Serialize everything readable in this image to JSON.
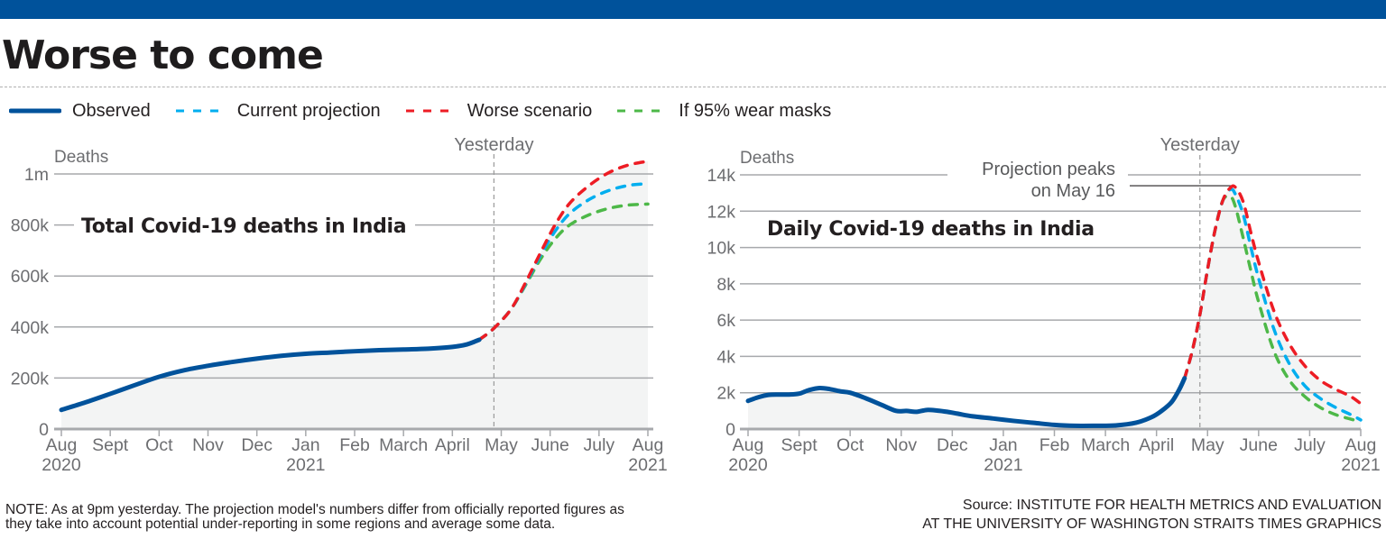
{
  "header": {
    "title": "Worse to come"
  },
  "legend": [
    {
      "label": "Observed",
      "color": "#00529b",
      "style": "solid"
    },
    {
      "label": "Current projection",
      "color": "#00aeef",
      "style": "dashed"
    },
    {
      "label": "Worse scenario",
      "color": "#ed1c24",
      "style": "dashed"
    },
    {
      "label": "If 95% wear masks",
      "color": "#4db848",
      "style": "dashed"
    }
  ],
  "footer": {
    "note_line1": "NOTE: As at 9pm yesterday. The projection model's numbers differ from officially reported figures as",
    "note_line2": "they take into account potential under-reporting in some regions and average some data.",
    "source_line1": "Source: INSTITUTE FOR HEALTH METRICS AND EVALUATION",
    "source_line2": "AT THE UNIVERSITY OF WASHINGTON   STRAITS TIMES GRAPHICS"
  },
  "chart_data": [
    {
      "type": "line",
      "title": "Total Covid-19 deaths in India",
      "ylabel": "Deaths",
      "xlabel": "",
      "x_unit": "months since Aug 2020",
      "xlim": [
        0,
        12
      ],
      "ylim": [
        0,
        1000000
      ],
      "yticks": [
        0,
        200000,
        400000,
        600000,
        800000,
        1000000
      ],
      "ytick_labels": [
        "0",
        "200k",
        "400k",
        "600k",
        "800k",
        "1m"
      ],
      "xticks": [
        0,
        1,
        2,
        3,
        4,
        5,
        6,
        7,
        8,
        9,
        10,
        11,
        12
      ],
      "xtick_labels": [
        "Aug",
        "Sept",
        "Oct",
        "Nov",
        "Dec",
        "Jan",
        "Feb",
        "March",
        "April",
        "May",
        "June",
        "July",
        "Aug"
      ],
      "xtick_sublabels": {
        "0": "2020",
        "5": "2021",
        "12": "2021"
      },
      "grid": true,
      "marker_line": {
        "x": 8.85,
        "label": "Yesterday"
      },
      "series": [
        {
          "name": "Observed",
          "x": [
            0,
            0.5,
            1,
            1.5,
            2,
            2.5,
            3,
            3.5,
            4,
            4.5,
            5,
            5.5,
            6,
            6.5,
            7,
            7.5,
            8,
            8.3,
            8.55
          ],
          "y": [
            75000,
            105000,
            138000,
            172000,
            205000,
            230000,
            248000,
            263000,
            276000,
            287000,
            295000,
            300000,
            305000,
            309000,
            312000,
            315000,
            322000,
            332000,
            350000
          ]
        },
        {
          "name": "Current projection",
          "x": [
            8.55,
            8.85,
            9.2,
            9.5,
            9.8,
            10.1,
            10.4,
            10.8,
            11.2,
            11.6,
            12
          ],
          "y": [
            350000,
            395000,
            470000,
            570000,
            680000,
            775000,
            845000,
            900000,
            935000,
            955000,
            962000
          ]
        },
        {
          "name": "Worse scenario",
          "x": [
            8.55,
            8.85,
            9.2,
            9.5,
            9.8,
            10.1,
            10.4,
            10.8,
            11.2,
            11.6,
            12
          ],
          "y": [
            350000,
            395000,
            470000,
            575000,
            690000,
            800000,
            885000,
            955000,
            1005000,
            1035000,
            1050000
          ]
        },
        {
          "name": "If 95% wear masks",
          "x": [
            8.55,
            8.85,
            9.2,
            9.5,
            9.8,
            10.1,
            10.4,
            10.8,
            11.2,
            11.6,
            12
          ],
          "y": [
            350000,
            395000,
            470000,
            565000,
            665000,
            745000,
            800000,
            840000,
            865000,
            878000,
            882000
          ]
        }
      ]
    },
    {
      "type": "line",
      "title": "Daily Covid-19 deaths in India",
      "ylabel": "Deaths",
      "xlabel": "",
      "x_unit": "months since Aug 2020",
      "xlim": [
        0,
        12
      ],
      "ylim": [
        0,
        14000
      ],
      "yticks": [
        0,
        2000,
        4000,
        6000,
        8000,
        10000,
        12000,
        14000
      ],
      "ytick_labels": [
        "0",
        "2k",
        "4k",
        "6k",
        "8k",
        "10k",
        "12k",
        "14k"
      ],
      "xticks": [
        0,
        1,
        2,
        3,
        4,
        5,
        6,
        7,
        8,
        9,
        10,
        11,
        12
      ],
      "xtick_labels": [
        "Aug",
        "Sept",
        "Oct",
        "Nov",
        "Dec",
        "Jan",
        "Feb",
        "March",
        "April",
        "May",
        "June",
        "July",
        "Aug"
      ],
      "xtick_sublabels": {
        "0": "2020",
        "5": "2021",
        "12": "2021"
      },
      "grid": true,
      "marker_line": {
        "x": 8.85,
        "label": "Yesterday"
      },
      "annotation": {
        "line1": "Projection peaks",
        "line2": "on May 16",
        "x": 9.5,
        "y": 13400
      },
      "series": [
        {
          "name": "Observed",
          "x": [
            0,
            0.2,
            0.4,
            0.6,
            0.8,
            1,
            1.2,
            1.4,
            1.6,
            1.8,
            2,
            2.3,
            2.6,
            2.9,
            3.1,
            3.3,
            3.5,
            3.7,
            3.9,
            4.1,
            4.4,
            4.8,
            5.2,
            5.6,
            6,
            6.4,
            6.8,
            7.2,
            7.6,
            7.9,
            8.1,
            8.3,
            8.45,
            8.55
          ],
          "y": [
            1550,
            1750,
            1880,
            1900,
            1900,
            1950,
            2150,
            2260,
            2200,
            2080,
            2000,
            1700,
            1350,
            1000,
            1000,
            950,
            1050,
            1020,
            950,
            850,
            700,
            580,
            450,
            340,
            230,
            180,
            180,
            200,
            350,
            650,
            1000,
            1500,
            2200,
            2800
          ]
        },
        {
          "name": "Current projection",
          "x": [
            8.55,
            8.7,
            8.85,
            9,
            9.15,
            9.3,
            9.45,
            9.55,
            9.7,
            9.85,
            10,
            10.3,
            10.6,
            10.9,
            11.2,
            11.5,
            11.8,
            12
          ],
          "y": [
            2800,
            4300,
            6300,
            8800,
            11000,
            12600,
            13200,
            12900,
            11800,
            10000,
            8300,
            5500,
            3600,
            2400,
            1700,
            1200,
            800,
            500
          ]
        },
        {
          "name": "Worse scenario",
          "x": [
            8.55,
            8.7,
            8.85,
            9,
            9.15,
            9.3,
            9.45,
            9.55,
            9.7,
            9.85,
            10,
            10.3,
            10.6,
            10.9,
            11.2,
            11.5,
            11.8,
            12
          ],
          "y": [
            2800,
            4300,
            6300,
            8800,
            11000,
            12600,
            13300,
            13300,
            12500,
            10800,
            9200,
            6500,
            4700,
            3500,
            2700,
            2200,
            1800,
            1400
          ]
        },
        {
          "name": "If 95% wear masks",
          "x": [
            8.55,
            8.7,
            8.85,
            9,
            9.15,
            9.3,
            9.45,
            9.55,
            9.7,
            9.85,
            10,
            10.3,
            10.6,
            10.9,
            11.2,
            11.5,
            11.8,
            12
          ],
          "y": [
            2800,
            4300,
            6300,
            8800,
            11000,
            12600,
            12800,
            12200,
            10500,
            8700,
            7000,
            4300,
            2700,
            1800,
            1200,
            800,
            550,
            400
          ]
        }
      ]
    }
  ]
}
